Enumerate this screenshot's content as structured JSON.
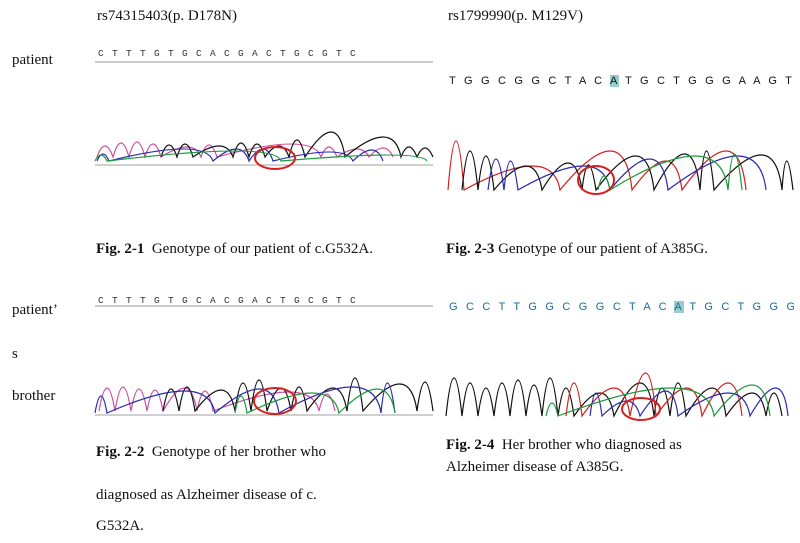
{
  "headers": {
    "left": "rs74315403(p. D178N)",
    "right": "rs1799990(p. M129V)"
  },
  "row_labels": {
    "patient": "patient",
    "brother_1": "patient’",
    "brother_2": "s",
    "brother_3": "brother"
  },
  "panels": {
    "p1": {
      "sequence": "C T T T G T G C A C G A C T G C G T C",
      "fig": "Fig. 2-1",
      "caption": "Genotype of our patient of c.G532A."
    },
    "p2": {
      "sequence": "C T T T G T G C A C G A C T G C G T C",
      "fig": "Fig. 2-2",
      "caption_line1": "Genotype of her brother who",
      "caption_line2": "diagnosed as Alzheimer disease of c.",
      "caption_line3": "G532A."
    },
    "p3": {
      "sequence_pre": "T G G C G G C T A C ",
      "sequence_hl": "A",
      "sequence_post": " T G C T G G G A A G T G",
      "fig": "Fig. 2-3",
      "caption": "Genotype of our patient of A385G."
    },
    "p4": {
      "sequence_pre": "G C C T T G G C G G C T A C ",
      "sequence_hl": "A",
      "sequence_post": " T G C T G G G A A G T",
      "fig": "Fig. 2-4",
      "caption_line1": "Her brother who diagnosed as",
      "caption_line2": "Alzheimer disease of A385G."
    }
  },
  "colors": {
    "A": "#1a9a3a",
    "C": "#2a2ab0",
    "G": "#111111",
    "T": "#d42020",
    "pinkT": "#d050a0",
    "highlight_circle": "#d62020"
  }
}
